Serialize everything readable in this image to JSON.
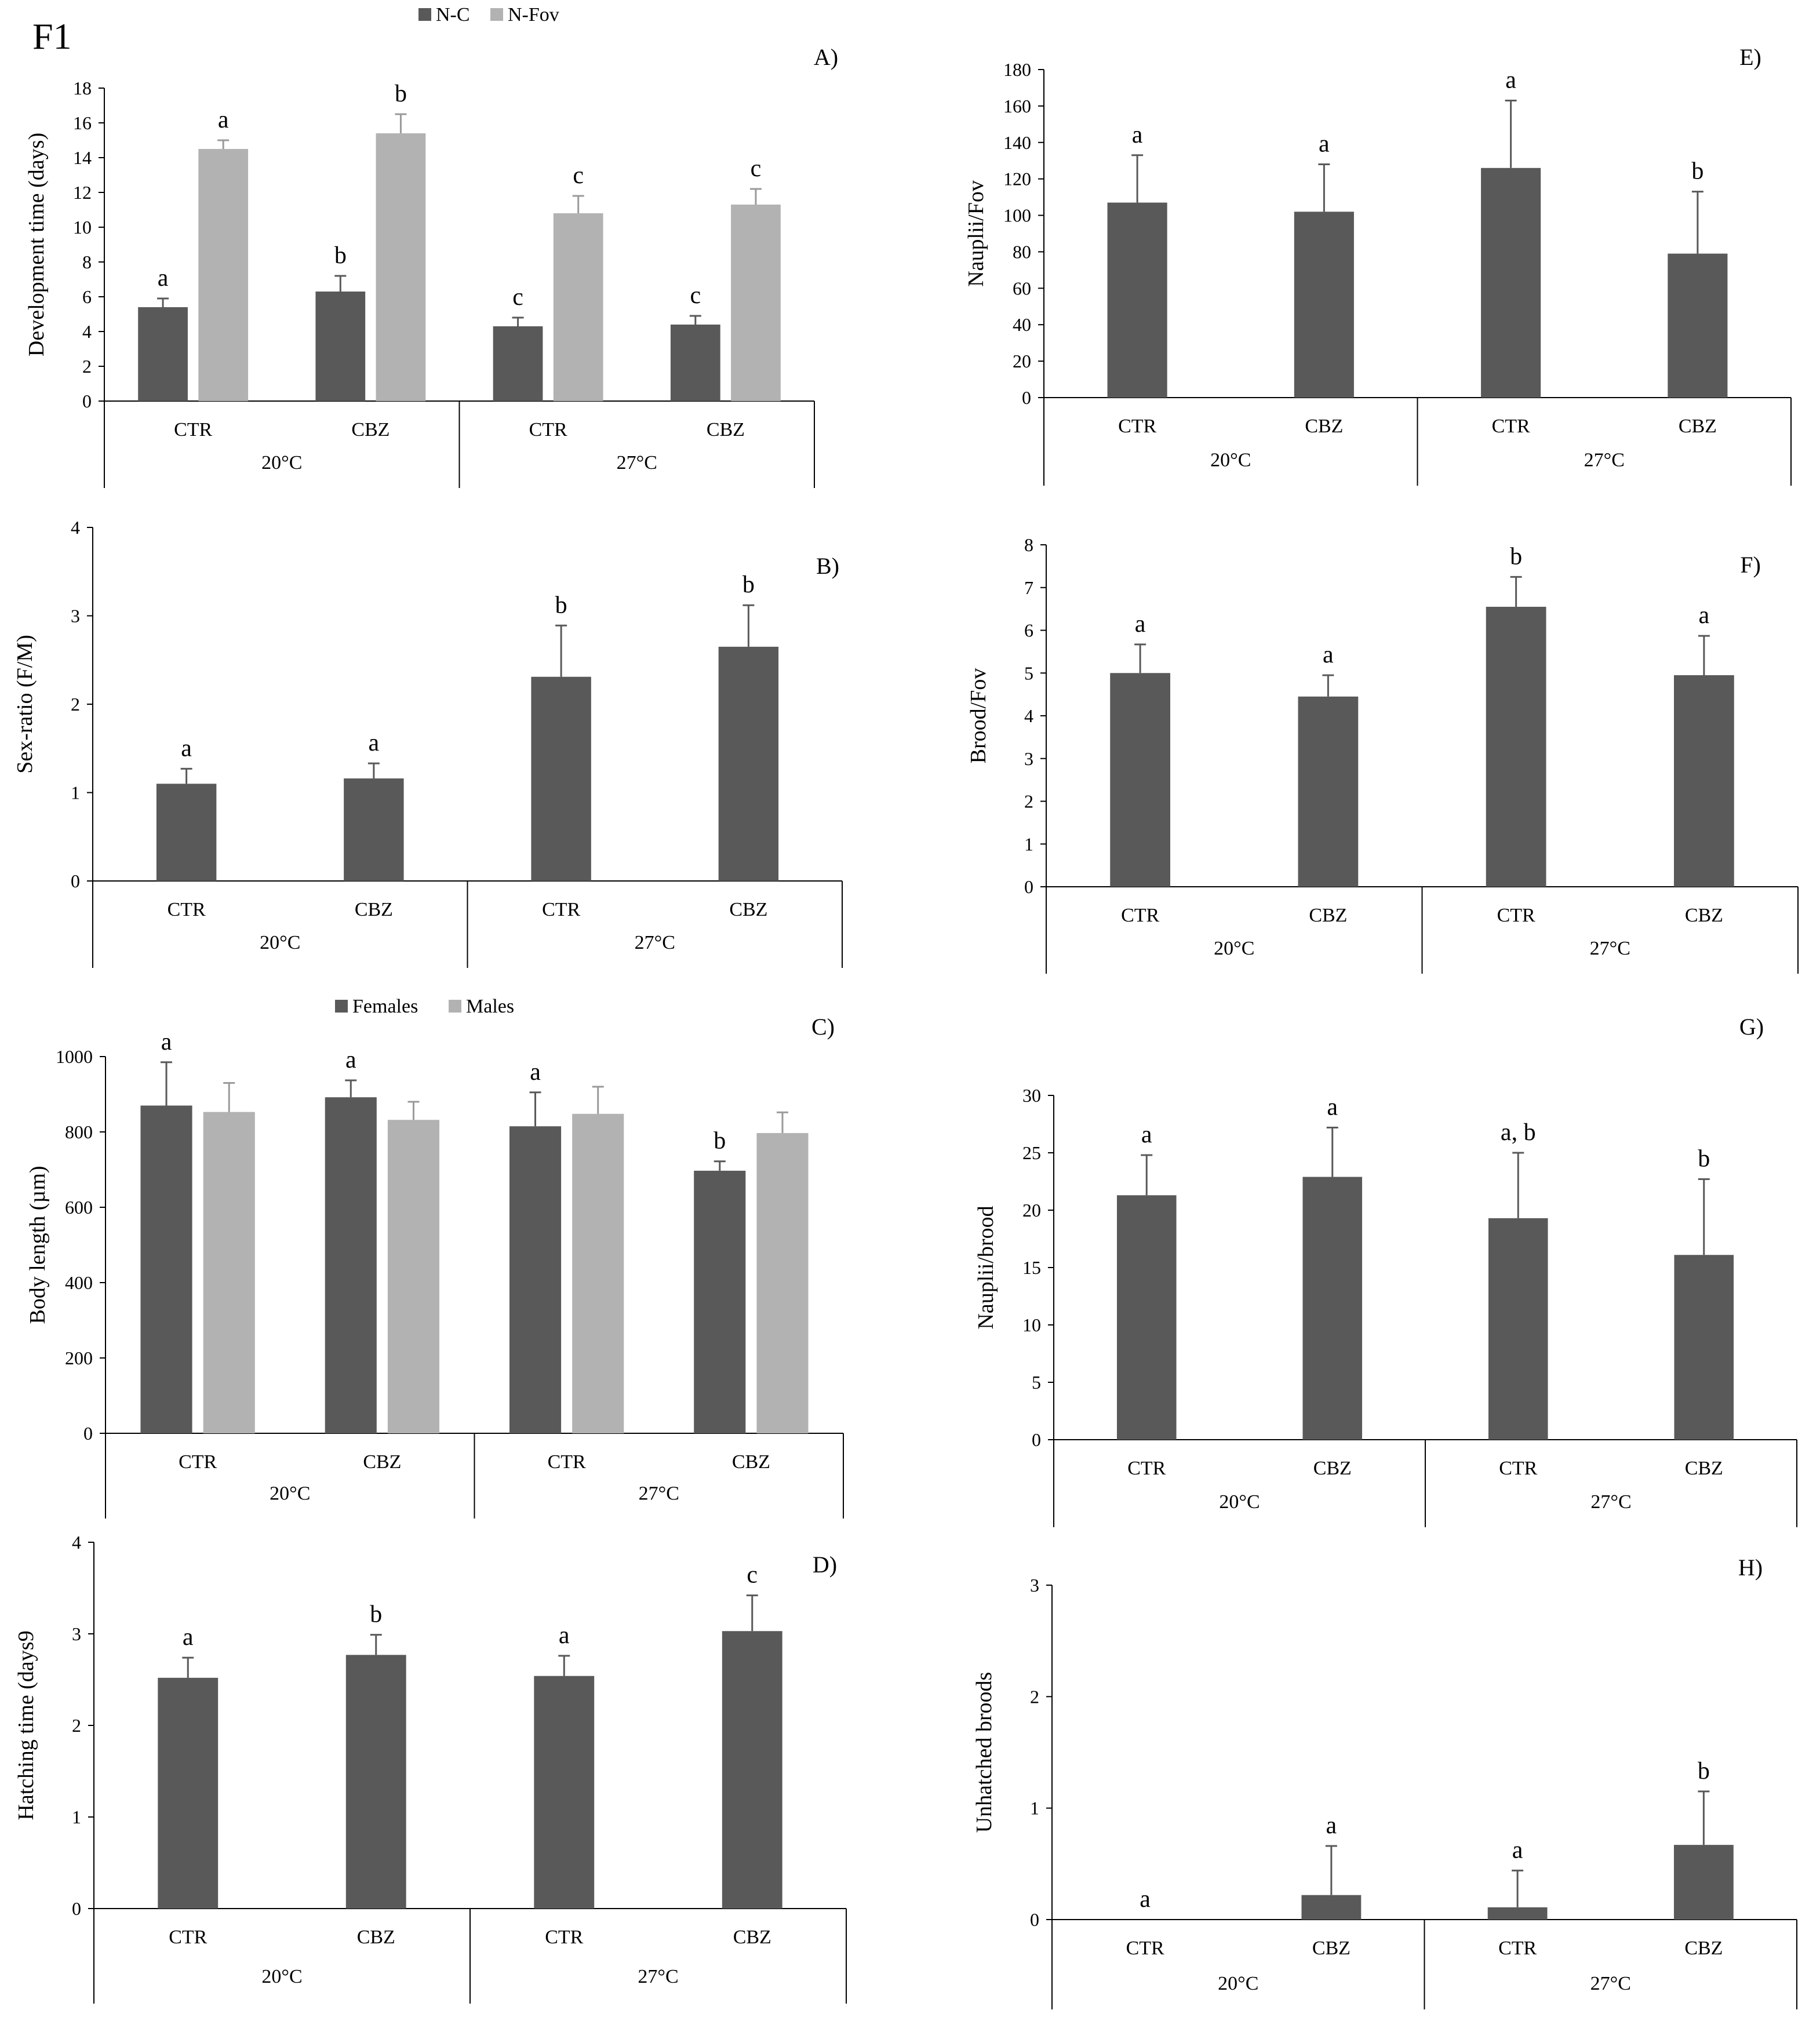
{
  "figure_label": "F1",
  "colors": {
    "dark": "#595959",
    "light": "#b2b2b2",
    "axis": "#000000",
    "text": "#000000"
  },
  "chart_data": [
    {
      "panel": "A)",
      "type": "bar",
      "ylabel": "Development time (days)",
      "yticks": [
        0,
        2,
        4,
        6,
        8,
        10,
        12,
        14,
        16,
        18
      ],
      "ylim": [
        0,
        18
      ],
      "categories": [
        "CTR",
        "CBZ",
        "CTR",
        "CBZ"
      ],
      "groups": [
        "20°C",
        "27°C"
      ],
      "legend": [
        {
          "name": "N-C",
          "color": "dark"
        },
        {
          "name": "N-Fov",
          "color": "light"
        }
      ],
      "series": [
        {
          "name": "N-C",
          "color": "dark",
          "values": [
            5.4,
            6.3,
            4.3,
            4.4
          ],
          "errors": [
            0.5,
            0.9,
            0.5,
            0.5
          ],
          "labels": [
            "a",
            "b",
            "c",
            "c"
          ]
        },
        {
          "name": "N-Fov",
          "color": "light",
          "values": [
            14.5,
            15.4,
            10.8,
            11.3
          ],
          "errors": [
            0.5,
            1.1,
            1.0,
            0.9
          ],
          "labels": [
            "a",
            "b",
            "c",
            "c"
          ]
        }
      ]
    },
    {
      "panel": "B)",
      "type": "bar",
      "ylabel": "Sex-ratio (F/M)",
      "yticks": [
        0,
        1,
        2,
        3,
        4
      ],
      "ylim": [
        0,
        4
      ],
      "categories": [
        "CTR",
        "CBZ",
        "CTR",
        "CBZ"
      ],
      "groups": [
        "20°C",
        "27°C"
      ],
      "series": [
        {
          "name": "Sex-ratio",
          "color": "dark",
          "values": [
            1.1,
            1.16,
            2.31,
            2.65
          ],
          "errors": [
            0.17,
            0.17,
            0.58,
            0.47
          ],
          "labels": [
            "a",
            "a",
            "b",
            "b"
          ]
        }
      ]
    },
    {
      "panel": "C)",
      "type": "bar",
      "ylabel": "Body length (µm)",
      "yticks": [
        0,
        200,
        400,
        600,
        800,
        1000
      ],
      "ylim": [
        0,
        1000
      ],
      "categories": [
        "CTR",
        "CBZ",
        "CTR",
        "CBZ"
      ],
      "groups": [
        "20°C",
        "27°C"
      ],
      "legend": [
        {
          "name": "Females",
          "color": "dark"
        },
        {
          "name": "Males",
          "color": "light"
        }
      ],
      "series": [
        {
          "name": "Females",
          "color": "dark",
          "values": [
            870,
            892,
            815,
            697
          ],
          "errors": [
            115,
            45,
            90,
            25
          ],
          "labels": [
            "a",
            "a",
            "a",
            "b"
          ]
        },
        {
          "name": "Males",
          "color": "light",
          "values": [
            853,
            832,
            848,
            797
          ],
          "errors": [
            77,
            48,
            72,
            55
          ],
          "labels": [
            "",
            "",
            "",
            ""
          ]
        }
      ]
    },
    {
      "panel": "D)",
      "type": "bar",
      "ylabel": "Hatching time (days9",
      "yticks": [
        0,
        1,
        2,
        3,
        4
      ],
      "ylim": [
        0,
        4
      ],
      "categories": [
        "CTR",
        "CBZ",
        "CTR",
        "CBZ"
      ],
      "groups": [
        "20°C",
        "27°C"
      ],
      "series": [
        {
          "name": "Hatching time",
          "color": "dark",
          "values": [
            2.52,
            2.77,
            2.54,
            3.03
          ],
          "errors": [
            0.22,
            0.22,
            0.22,
            0.39
          ],
          "labels": [
            "a",
            "b",
            "a",
            "c"
          ]
        }
      ]
    },
    {
      "panel": "E)",
      "type": "bar",
      "ylabel": "Nauplii/Fov",
      "yticks": [
        0,
        20,
        40,
        60,
        80,
        100,
        120,
        140,
        160,
        180
      ],
      "ylim": [
        0,
        180
      ],
      "categories": [
        "CTR",
        "CBZ",
        "CTR",
        "CBZ"
      ],
      "groups": [
        "20°C",
        "27°C"
      ],
      "series": [
        {
          "name": "Nauplii/Fov",
          "color": "dark",
          "values": [
            107,
            102,
            126,
            79
          ],
          "errors": [
            26,
            26,
            37,
            34
          ],
          "labels": [
            "a",
            "a",
            "a",
            "b"
          ]
        }
      ]
    },
    {
      "panel": "F)",
      "type": "bar",
      "ylabel": "Brood/Fov",
      "yticks": [
        0,
        1,
        2,
        3,
        4,
        5,
        6,
        7,
        8
      ],
      "ylim": [
        0,
        8
      ],
      "categories": [
        "CTR",
        "CBZ",
        "CTR",
        "CBZ"
      ],
      "groups": [
        "20°C",
        "27°C"
      ],
      "series": [
        {
          "name": "Brood/Fov",
          "color": "dark",
          "values": [
            5.0,
            4.45,
            6.55,
            4.95
          ],
          "errors": [
            0.67,
            0.5,
            0.7,
            0.92
          ],
          "labels": [
            "a",
            "a",
            "b",
            "a"
          ]
        }
      ]
    },
    {
      "panel": "G)",
      "type": "bar",
      "ylabel": "Nauplii/brood",
      "yticks": [
        0,
        5,
        10,
        15,
        20,
        25,
        30
      ],
      "ylim": [
        0,
        30
      ],
      "categories": [
        "CTR",
        "CBZ",
        "CTR",
        "CBZ"
      ],
      "groups": [
        "20°C",
        "27°C"
      ],
      "series": [
        {
          "name": "Nauplii/brood",
          "color": "dark",
          "values": [
            21.3,
            22.9,
            19.3,
            16.1
          ],
          "errors": [
            3.5,
            4.3,
            5.7,
            6.6
          ],
          "labels": [
            "a",
            "a",
            "a, b",
            "b"
          ]
        }
      ]
    },
    {
      "panel": "H)",
      "type": "bar",
      "ylabel": "Unhatched broods",
      "yticks": [
        0,
        1,
        2,
        3
      ],
      "ylim": [
        0,
        3
      ],
      "categories": [
        "CTR",
        "CBZ",
        "CTR",
        "CBZ"
      ],
      "groups": [
        "20°C",
        "27°C"
      ],
      "series": [
        {
          "name": "Unhatched broods",
          "color": "dark",
          "values": [
            0,
            0.22,
            0.11,
            0.67
          ],
          "errors": [
            0,
            0.44,
            0.33,
            0.48
          ],
          "labels": [
            "a",
            "a",
            "a",
            "b"
          ]
        }
      ]
    }
  ]
}
